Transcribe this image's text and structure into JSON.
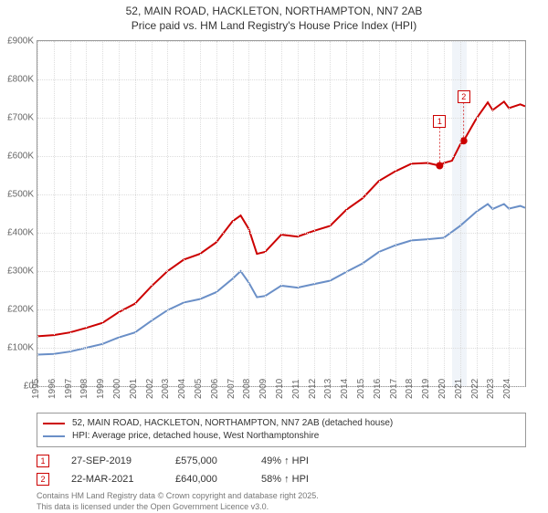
{
  "title": {
    "line1": "52, MAIN ROAD, HACKLETON, NORTHAMPTON, NN7 2AB",
    "line2": "Price paid vs. HM Land Registry's House Price Index (HPI)"
  },
  "chart": {
    "type": "line",
    "background_color": "#ffffff",
    "grid_color": "#dddddd",
    "x": {
      "min": 1995,
      "max": 2025,
      "ticks": [
        1995,
        1996,
        1997,
        1998,
        1999,
        2000,
        2001,
        2002,
        2003,
        2004,
        2005,
        2006,
        2007,
        2008,
        2009,
        2010,
        2011,
        2012,
        2013,
        2014,
        2015,
        2016,
        2017,
        2018,
        2019,
        2020,
        2021,
        2022,
        2023,
        2024
      ]
    },
    "y": {
      "min": 0,
      "max": 900000,
      "ticks": [
        0,
        100000,
        200000,
        300000,
        400000,
        500000,
        600000,
        700000,
        800000,
        900000
      ],
      "tick_labels": [
        "£0",
        "£100K",
        "£200K",
        "£300K",
        "£400K",
        "£500K",
        "£600K",
        "£700K",
        "£800K",
        "£900K"
      ]
    },
    "band": {
      "from": 2020.5,
      "to": 2021.4,
      "color": "#e6ecf5"
    },
    "series": [
      {
        "name": "price_paid",
        "color": "#cc0000",
        "width": 2,
        "points": [
          [
            1995,
            130000
          ],
          [
            1996,
            133000
          ],
          [
            1997,
            140000
          ],
          [
            1998,
            152000
          ],
          [
            1999,
            165000
          ],
          [
            2000,
            193000
          ],
          [
            2001,
            215000
          ],
          [
            2002,
            260000
          ],
          [
            2003,
            300000
          ],
          [
            2004,
            330000
          ],
          [
            2005,
            345000
          ],
          [
            2006,
            375000
          ],
          [
            2007,
            430000
          ],
          [
            2007.5,
            445000
          ],
          [
            2008,
            410000
          ],
          [
            2008.5,
            345000
          ],
          [
            2009,
            350000
          ],
          [
            2010,
            395000
          ],
          [
            2011,
            390000
          ],
          [
            2012,
            405000
          ],
          [
            2013,
            418000
          ],
          [
            2014,
            460000
          ],
          [
            2015,
            490000
          ],
          [
            2016,
            535000
          ],
          [
            2017,
            560000
          ],
          [
            2018,
            580000
          ],
          [
            2019,
            582000
          ],
          [
            2019.74,
            575000
          ],
          [
            2020,
            582000
          ],
          [
            2020.5,
            588000
          ],
          [
            2021,
            630000
          ],
          [
            2021.22,
            640000
          ],
          [
            2022,
            698000
          ],
          [
            2022.7,
            740000
          ],
          [
            2023,
            720000
          ],
          [
            2023.7,
            742000
          ],
          [
            2024,
            725000
          ],
          [
            2024.7,
            735000
          ],
          [
            2025,
            730000
          ]
        ]
      },
      {
        "name": "hpi",
        "color": "#6a8fc7",
        "width": 2,
        "points": [
          [
            1995,
            82000
          ],
          [
            1996,
            84000
          ],
          [
            1997,
            90000
          ],
          [
            1998,
            100000
          ],
          [
            1999,
            110000
          ],
          [
            2000,
            127000
          ],
          [
            2001,
            140000
          ],
          [
            2002,
            170000
          ],
          [
            2003,
            198000
          ],
          [
            2004,
            218000
          ],
          [
            2005,
            227000
          ],
          [
            2006,
            245000
          ],
          [
            2007,
            280000
          ],
          [
            2007.5,
            300000
          ],
          [
            2008,
            270000
          ],
          [
            2008.5,
            232000
          ],
          [
            2009,
            235000
          ],
          [
            2010,
            262000
          ],
          [
            2011,
            257000
          ],
          [
            2012,
            266000
          ],
          [
            2013,
            275000
          ],
          [
            2014,
            298000
          ],
          [
            2015,
            320000
          ],
          [
            2016,
            350000
          ],
          [
            2017,
            367000
          ],
          [
            2018,
            380000
          ],
          [
            2019,
            383000
          ],
          [
            2020,
            387000
          ],
          [
            2021,
            418000
          ],
          [
            2022,
            455000
          ],
          [
            2022.7,
            475000
          ],
          [
            2023,
            462000
          ],
          [
            2023.7,
            475000
          ],
          [
            2024,
            463000
          ],
          [
            2024.7,
            470000
          ],
          [
            2025,
            465000
          ]
        ]
      }
    ],
    "markers": [
      {
        "id": "1",
        "x": 2019.74,
        "y": 575000,
        "label_y_offset": -56,
        "color": "#cc0000"
      },
      {
        "id": "2",
        "x": 2021.22,
        "y": 640000,
        "label_y_offset": -56,
        "color": "#cc0000"
      }
    ]
  },
  "legend": {
    "items": [
      {
        "color": "#cc0000",
        "label": "52, MAIN ROAD, HACKLETON, NORTHAMPTON, NN7 2AB (detached house)"
      },
      {
        "color": "#6a8fc7",
        "label": "HPI: Average price, detached house, West Northamptonshire"
      }
    ]
  },
  "sales": [
    {
      "id": "1",
      "date": "27-SEP-2019",
      "price": "£575,000",
      "diff": "49% ↑ HPI"
    },
    {
      "id": "2",
      "date": "22-MAR-2021",
      "price": "£640,000",
      "diff": "58% ↑ HPI"
    }
  ],
  "footer": {
    "line1": "Contains HM Land Registry data © Crown copyright and database right 2025.",
    "line2": "This data is licensed under the Open Government Licence v3.0."
  }
}
